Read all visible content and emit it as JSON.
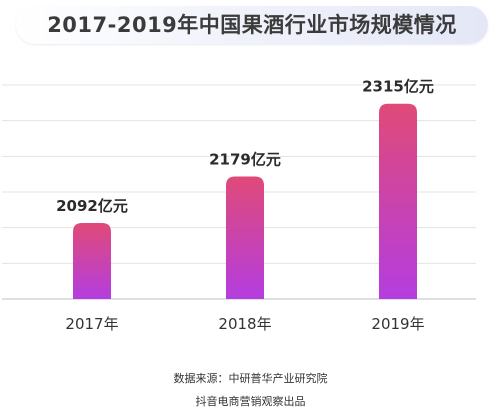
{
  "colors": {
    "bar_top": "#e04a78",
    "bar_bottom": "#b43de0",
    "grid": "#e3e3e3",
    "axis": "#cccccc",
    "text": "#333333"
  },
  "chart_data": {
    "type": "bar",
    "title": "2017-2019年中国果酒行业市场规模情况",
    "categories": [
      "2017年",
      "2018年",
      "2019年"
    ],
    "values": [
      2092,
      2179,
      2315
    ],
    "data_labels": [
      "2092亿元",
      "2179亿元",
      "2315亿元"
    ],
    "unit": "亿元",
    "ylim": [
      1950,
      2350
    ],
    "grid": true,
    "legend": "none"
  },
  "footer": {
    "source": "数据来源：中研普华产业研究院",
    "producer": "抖音电商营销观察出品"
  }
}
